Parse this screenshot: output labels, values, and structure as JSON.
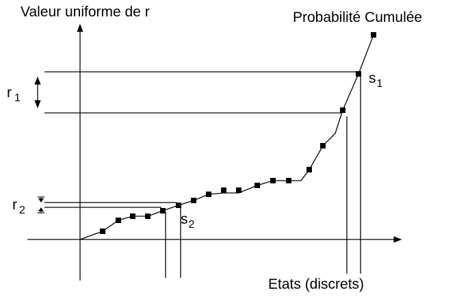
{
  "y_axis_label": "Valeur uniforme de r",
  "curve_label": "Probabilité Cumulée",
  "x_axis_label": "Etats (discrets)",
  "r1": {
    "text": "r",
    "sub": "1"
  },
  "r2": {
    "text": "r",
    "sub": "2"
  },
  "s1": {
    "text": "s",
    "sub": "1"
  },
  "s2": {
    "text": "s",
    "sub": "2"
  }
}
